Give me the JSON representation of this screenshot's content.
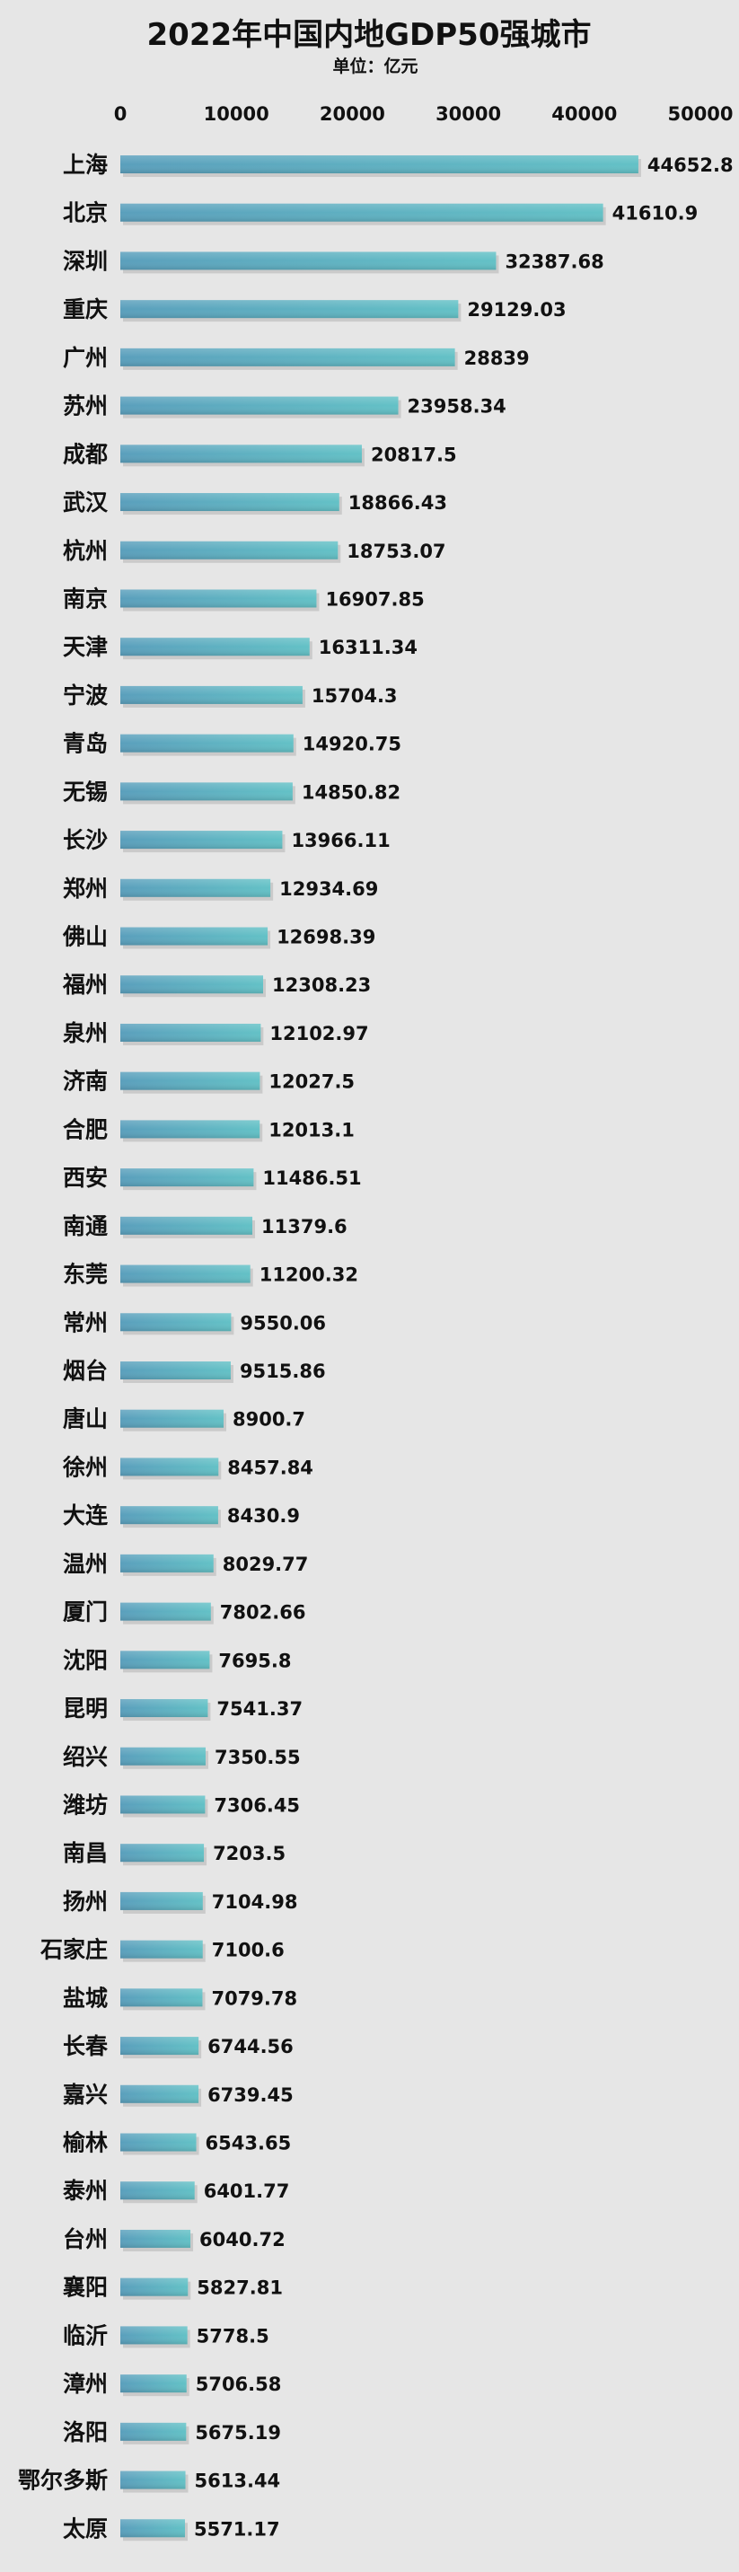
{
  "chart_data": {
    "type": "bar",
    "orientation": "horizontal",
    "title": "2022年中国内地GDP50强城市",
    "subtitle": "单位：亿元",
    "xlim": [
      0,
      50000
    ],
    "xticks": [
      "0",
      "10000",
      "20000",
      "30000",
      "40000",
      "50000"
    ],
    "grid": false,
    "bar_color": "#5fb4c2",
    "categories": [
      "上海",
      "北京",
      "深圳",
      "重庆",
      "广州",
      "苏州",
      "成都",
      "武汉",
      "杭州",
      "南京",
      "天津",
      "宁波",
      "青岛",
      "无锡",
      "长沙",
      "郑州",
      "佛山",
      "福州",
      "泉州",
      "济南",
      "合肥",
      "西安",
      "南通",
      "东莞",
      "常州",
      "烟台",
      "唐山",
      "徐州",
      "大连",
      "温州",
      "厦门",
      "沈阳",
      "昆明",
      "绍兴",
      "潍坊",
      "南昌",
      "扬州",
      "石家庄",
      "盐城",
      "长春",
      "嘉兴",
      "榆林",
      "泰州",
      "台州",
      "襄阳",
      "临沂",
      "漳州",
      "洛阳",
      "鄂尔多斯",
      "太原"
    ],
    "values": [
      44652.8,
      41610.9,
      32387.68,
      29129.03,
      28839,
      23958.34,
      20817.5,
      18866.43,
      18753.07,
      16907.85,
      16311.34,
      15704.3,
      14920.75,
      14850.82,
      13966.11,
      12934.69,
      12698.39,
      12308.23,
      12102.97,
      12027.5,
      12013.1,
      11486.51,
      11379.6,
      11200.32,
      9550.06,
      9515.86,
      8900.7,
      8457.84,
      8430.9,
      8029.77,
      7802.66,
      7695.8,
      7541.37,
      7350.55,
      7306.45,
      7203.5,
      7104.98,
      7100.6,
      7079.78,
      6744.56,
      6739.45,
      6543.65,
      6401.77,
      6040.72,
      5827.81,
      5778.5,
      5706.58,
      5675.19,
      5613.44,
      5571.17
    ],
    "value_labels": [
      "44652.8",
      "41610.9",
      "32387.68",
      "29129.03",
      "28839",
      "23958.34",
      "20817.5",
      "18866.43",
      "18753.07",
      "16907.85",
      "16311.34",
      "15704.3",
      "14920.75",
      "14850.82",
      "13966.11",
      "12934.69",
      "12698.39",
      "12308.23",
      "12102.97",
      "12027.5",
      "12013.1",
      "11486.51",
      "11379.6",
      "11200.32",
      "9550.06",
      "9515.86",
      "8900.7",
      "8457.84",
      "8430.9",
      "8029.77",
      "7802.66",
      "7695.8",
      "7541.37",
      "7350.55",
      "7306.45",
      "7203.5",
      "7104.98",
      "7100.6",
      "7079.78",
      "6744.56",
      "6739.45",
      "6543.65",
      "6401.77",
      "6040.72",
      "5827.81",
      "5778.5",
      "5706.58",
      "5675.19",
      "5613.44",
      "5571.17"
    ]
  }
}
